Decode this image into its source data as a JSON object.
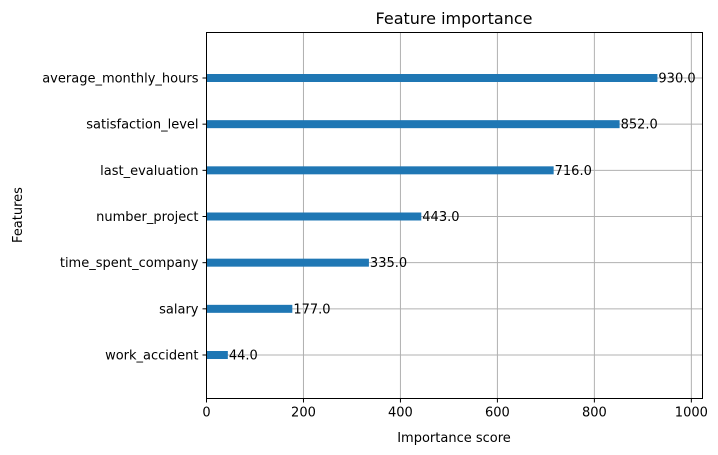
{
  "chart_data": {
    "type": "bar",
    "orientation": "horizontal",
    "title": "Feature importance",
    "xlabel": "Importance score",
    "ylabel": "Features",
    "categories": [
      "work_accident",
      "salary",
      "time_spent_company",
      "number_project",
      "last_evaluation",
      "satisfaction_level",
      "average_monthly_hours"
    ],
    "values": [
      44.0,
      177.0,
      335.0,
      443.0,
      716.0,
      852.0,
      930.0
    ],
    "value_labels": [
      "44.0",
      "177.0",
      "335.0",
      "443.0",
      "716.0",
      "852.0",
      "930.0"
    ],
    "xlim": [
      0,
      1023
    ],
    "xticks": [
      0,
      200,
      400,
      600,
      800,
      1000
    ],
    "xtick_labels": [
      "0",
      "200",
      "400",
      "600",
      "800",
      "1000"
    ],
    "grid": true,
    "bar_color": "#1f77b4",
    "grid_color": "#b0b0b0"
  }
}
